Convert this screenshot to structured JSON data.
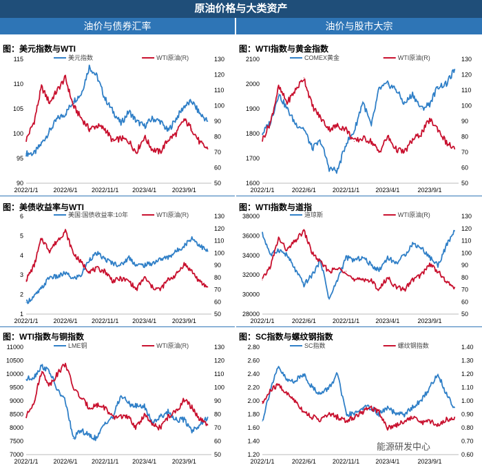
{
  "header": {
    "title": "原油价格与大类资产",
    "left_section": "油价与债券汇率",
    "right_section": "油价与股市大宗"
  },
  "watermark": "能源研发中心",
  "colors": {
    "blue": "#2f7fc7",
    "red": "#c8102e"
  },
  "chart_data": [
    {
      "id": "usd",
      "type": "line",
      "title": "图：美元指数与WTI",
      "x_ticks": [
        "2022/1/1",
        "2022/6/1",
        "2022/11/1",
        "2023/4/1",
        "2023/9/1"
      ],
      "left_axis": {
        "min": 90,
        "max": 115,
        "ticks": [
          "90",
          "95",
          "100",
          "105",
          "110",
          "115"
        ]
      },
      "right_axis": {
        "min": 50,
        "max": 130,
        "ticks": [
          "50",
          "60",
          "70",
          "80",
          "90",
          "100",
          "110",
          "120",
          "130"
        ]
      },
      "series": [
        {
          "name": "美元指数",
          "axis": "left",
          "color": "#2f7fc7",
          "x": [
            "2022-01-01",
            "2022-02-01",
            "2022-03-01",
            "2022-04-01",
            "2022-05-01",
            "2022-06-01",
            "2022-07-01",
            "2022-08-01",
            "2022-09-01",
            "2022-10-01",
            "2022-11-01",
            "2022-12-01",
            "2023-01-01",
            "2023-02-01",
            "2023-03-01",
            "2023-04-01",
            "2023-05-01",
            "2023-06-01",
            "2023-07-01",
            "2023-08-01",
            "2023-09-01",
            "2023-10-01",
            "2023-11-01",
            "2023-12-01"
          ],
          "values": [
            96,
            96,
            98,
            100.5,
            103,
            104,
            106.5,
            108,
            113.5,
            111.5,
            107,
            104.5,
            102,
            104.5,
            102.5,
            101.5,
            103,
            102.5,
            100.5,
            103,
            105.5,
            106.5,
            104,
            102.5
          ]
        },
        {
          "name": "WTI原油(R)",
          "axis": "right",
          "color": "#c8102e",
          "x": [
            "2022-01-01",
            "2022-02-01",
            "2022-03-01",
            "2022-04-01",
            "2022-05-01",
            "2022-06-01",
            "2022-07-01",
            "2022-08-01",
            "2022-09-01",
            "2022-10-01",
            "2022-11-01",
            "2022-12-01",
            "2023-01-01",
            "2023-02-01",
            "2023-03-01",
            "2023-04-01",
            "2023-05-01",
            "2023-06-01",
            "2023-07-01",
            "2023-08-01",
            "2023-09-01",
            "2023-10-01",
            "2023-11-01",
            "2023-12-01"
          ],
          "values": [
            78,
            90,
            112,
            102,
            110,
            118,
            100,
            92,
            85,
            87,
            85,
            77,
            79,
            77,
            70,
            80,
            72,
            70,
            78,
            82,
            91,
            85,
            76,
            72
          ]
        }
      ]
    },
    {
      "id": "gold",
      "type": "line",
      "title": "图：WTI指数与黄金指数",
      "x_ticks": [
        "2022/1/1",
        "2022/6/1",
        "2022/11/1",
        "2023/4/1",
        "2023/9/1"
      ],
      "left_axis": {
        "min": 1600,
        "max": 2100,
        "ticks": [
          "1600",
          "1700",
          "1800",
          "1900",
          "2000",
          "2100"
        ]
      },
      "right_axis": {
        "min": 50,
        "max": 130,
        "ticks": [
          "50",
          "60",
          "70",
          "80",
          "90",
          "100",
          "110",
          "120",
          "130"
        ]
      },
      "series": [
        {
          "name": "COMEX黄金",
          "axis": "left",
          "color": "#2f7fc7",
          "x": [
            "2022-01-01",
            "2022-02-01",
            "2022-03-01",
            "2022-04-01",
            "2022-05-01",
            "2022-06-01",
            "2022-07-01",
            "2022-08-01",
            "2022-09-01",
            "2022-10-01",
            "2022-11-01",
            "2022-12-01",
            "2023-01-01",
            "2023-02-01",
            "2023-03-01",
            "2023-04-01",
            "2023-05-01",
            "2023-06-01",
            "2023-07-01",
            "2023-08-01",
            "2023-09-01",
            "2023-10-01",
            "2023-11-01",
            "2023-12-01"
          ],
          "values": [
            1800,
            1850,
            1960,
            1900,
            1840,
            1820,
            1740,
            1770,
            1660,
            1650,
            1760,
            1810,
            1930,
            1830,
            1980,
            2000,
            1980,
            1920,
            1960,
            1900,
            1920,
            1990,
            2000,
            2060
          ]
        },
        {
          "name": "WTI原油(R)",
          "axis": "right",
          "color": "#c8102e",
          "x": [
            "2022-01-01",
            "2022-02-01",
            "2022-03-01",
            "2022-04-01",
            "2022-05-01",
            "2022-06-01",
            "2022-07-01",
            "2022-08-01",
            "2022-09-01",
            "2022-10-01",
            "2022-11-01",
            "2022-12-01",
            "2023-01-01",
            "2023-02-01",
            "2023-03-01",
            "2023-04-01",
            "2023-05-01",
            "2023-06-01",
            "2023-07-01",
            "2023-08-01",
            "2023-09-01",
            "2023-10-01",
            "2023-11-01",
            "2023-12-01"
          ],
          "values": [
            78,
            90,
            112,
            102,
            110,
            118,
            100,
            92,
            85,
            87,
            85,
            77,
            79,
            77,
            70,
            80,
            72,
            70,
            78,
            82,
            91,
            85,
            76,
            72
          ]
        }
      ]
    },
    {
      "id": "yield",
      "type": "line",
      "title": "图：美债收益率与WTI",
      "x_ticks": [
        "2022/1/1",
        "2022/6/1",
        "2022/11/1",
        "2023/4/1",
        "2023/9/1"
      ],
      "left_axis": {
        "min": 1,
        "max": 6,
        "ticks": [
          "1",
          "2",
          "3",
          "4",
          "5",
          "6"
        ]
      },
      "right_axis": {
        "min": 50,
        "max": 130,
        "ticks": [
          "50",
          "60",
          "70",
          "80",
          "90",
          "100",
          "110",
          "120",
          "130"
        ]
      },
      "series": [
        {
          "name": "美国:国债收益率:10年",
          "axis": "left",
          "color": "#2f7fc7",
          "x": [
            "2022-01-01",
            "2022-02-01",
            "2022-03-01",
            "2022-04-01",
            "2022-05-01",
            "2022-06-01",
            "2022-07-01",
            "2022-08-01",
            "2022-09-01",
            "2022-10-01",
            "2022-11-01",
            "2022-12-01",
            "2023-01-01",
            "2023-02-01",
            "2023-03-01",
            "2023-04-01",
            "2023-05-01",
            "2023-06-01",
            "2023-07-01",
            "2023-08-01",
            "2023-09-01",
            "2023-10-01",
            "2023-11-01",
            "2023-12-01"
          ],
          "values": [
            1.6,
            1.9,
            2.3,
            2.9,
            2.9,
            3.1,
            2.8,
            3.0,
            3.8,
            4.1,
            3.8,
            3.6,
            3.5,
            3.9,
            3.5,
            3.5,
            3.6,
            3.8,
            3.9,
            4.2,
            4.5,
            4.9,
            4.5,
            4.2
          ]
        },
        {
          "name": "WTI原油(R)",
          "axis": "right",
          "color": "#c8102e",
          "x": [
            "2022-01-01",
            "2022-02-01",
            "2022-03-01",
            "2022-04-01",
            "2022-05-01",
            "2022-06-01",
            "2022-07-01",
            "2022-08-01",
            "2022-09-01",
            "2022-10-01",
            "2022-11-01",
            "2022-12-01",
            "2023-01-01",
            "2023-02-01",
            "2023-03-01",
            "2023-04-01",
            "2023-05-01",
            "2023-06-01",
            "2023-07-01",
            "2023-08-01",
            "2023-09-01",
            "2023-10-01",
            "2023-11-01",
            "2023-12-01"
          ],
          "values": [
            78,
            90,
            112,
            102,
            110,
            118,
            100,
            92,
            85,
            87,
            85,
            77,
            79,
            77,
            70,
            80,
            72,
            70,
            78,
            82,
            91,
            85,
            76,
            72
          ]
        }
      ]
    },
    {
      "id": "dow",
      "type": "line",
      "title": "图：WTI指数与道指",
      "x_ticks": [
        "2022/1/1",
        "2022/6/1",
        "2022/11/1",
        "2023/4/1",
        "2023/9/1"
      ],
      "left_axis": {
        "min": 28000,
        "max": 38000,
        "ticks": [
          "28000",
          "30000",
          "32000",
          "34000",
          "36000",
          "38000"
        ]
      },
      "right_axis": {
        "min": 50,
        "max": 130,
        "ticks": [
          "50",
          "60",
          "70",
          "80",
          "90",
          "100",
          "110",
          "120",
          "130"
        ]
      },
      "series": [
        {
          "name": "道琼斯",
          "axis": "left",
          "color": "#2f7fc7",
          "x": [
            "2022-01-01",
            "2022-02-01",
            "2022-03-01",
            "2022-04-01",
            "2022-05-01",
            "2022-06-01",
            "2022-07-01",
            "2022-08-01",
            "2022-09-01",
            "2022-10-01",
            "2022-11-01",
            "2022-12-01",
            "2023-01-01",
            "2023-02-01",
            "2023-03-01",
            "2023-04-01",
            "2023-05-01",
            "2023-06-01",
            "2023-07-01",
            "2023-08-01",
            "2023-09-01",
            "2023-10-01",
            "2023-11-01",
            "2023-12-01"
          ],
          "values": [
            36200,
            34000,
            34600,
            34000,
            32500,
            31000,
            32000,
            33500,
            29500,
            31500,
            33800,
            33500,
            33800,
            33000,
            32500,
            33800,
            33200,
            34000,
            35200,
            34800,
            33800,
            33000,
            35000,
            36500
          ]
        },
        {
          "name": "WTI原油(R)",
          "axis": "right",
          "color": "#c8102e",
          "x": [
            "2022-01-01",
            "2022-02-01",
            "2022-03-01",
            "2022-04-01",
            "2022-05-01",
            "2022-06-01",
            "2022-07-01",
            "2022-08-01",
            "2022-09-01",
            "2022-10-01",
            "2022-11-01",
            "2022-12-01",
            "2023-01-01",
            "2023-02-01",
            "2023-03-01",
            "2023-04-01",
            "2023-05-01",
            "2023-06-01",
            "2023-07-01",
            "2023-08-01",
            "2023-09-01",
            "2023-10-01",
            "2023-11-01",
            "2023-12-01"
          ],
          "values": [
            78,
            90,
            112,
            102,
            110,
            118,
            100,
            92,
            85,
            87,
            85,
            77,
            79,
            77,
            70,
            80,
            72,
            70,
            78,
            82,
            91,
            85,
            76,
            72
          ]
        }
      ]
    },
    {
      "id": "copper",
      "type": "line",
      "title": "图：WTI指数与铜指数",
      "x_ticks": [
        "2022/1/1",
        "2022/6/1",
        "2022/11/1",
        "2023/4/1",
        "2023/9/1"
      ],
      "left_axis": {
        "min": 7000,
        "max": 11000,
        "ticks": [
          "7000",
          "7500",
          "8000",
          "8500",
          "9000",
          "9500",
          "10000",
          "10500",
          "11000"
        ]
      },
      "right_axis": {
        "min": 50,
        "max": 130,
        "ticks": [
          "50",
          "60",
          "70",
          "80",
          "90",
          "100",
          "110",
          "120",
          "130"
        ]
      },
      "series": [
        {
          "name": "LME铜",
          "axis": "left",
          "color": "#2f7fc7",
          "x": [
            "2022-01-01",
            "2022-02-01",
            "2022-03-01",
            "2022-04-01",
            "2022-05-01",
            "2022-06-01",
            "2022-07-01",
            "2022-08-01",
            "2022-09-01",
            "2022-10-01",
            "2022-11-01",
            "2022-12-01",
            "2023-01-01",
            "2023-02-01",
            "2023-03-01",
            "2023-04-01",
            "2023-05-01",
            "2023-06-01",
            "2023-07-01",
            "2023-08-01",
            "2023-09-01",
            "2023-10-01",
            "2023-11-01",
            "2023-12-01"
          ],
          "values": [
            9800,
            9900,
            10300,
            10100,
            9400,
            9000,
            7600,
            7900,
            7700,
            7600,
            8200,
            8400,
            9200,
            8900,
            8800,
            8800,
            8200,
            8400,
            8600,
            8300,
            8300,
            7900,
            8100,
            8400
          ]
        },
        {
          "name": "WTI原油(R)",
          "axis": "right",
          "color": "#c8102e",
          "x": [
            "2022-01-01",
            "2022-02-01",
            "2022-03-01",
            "2022-04-01",
            "2022-05-01",
            "2022-06-01",
            "2022-07-01",
            "2022-08-01",
            "2022-09-01",
            "2022-10-01",
            "2022-11-01",
            "2022-12-01",
            "2023-01-01",
            "2023-02-01",
            "2023-03-01",
            "2023-04-01",
            "2023-05-01",
            "2023-06-01",
            "2023-07-01",
            "2023-08-01",
            "2023-09-01",
            "2023-10-01",
            "2023-11-01",
            "2023-12-01"
          ],
          "values": [
            78,
            90,
            112,
            102,
            110,
            118,
            100,
            92,
            85,
            87,
            85,
            77,
            79,
            77,
            70,
            80,
            72,
            70,
            78,
            82,
            91,
            85,
            76,
            72
          ]
        }
      ]
    },
    {
      "id": "sc",
      "type": "line",
      "title": "图：SC指数与螺纹钢指数",
      "x_ticks": [
        "2022/1/1",
        "2022/6/1",
        "2022/11/1",
        "2023/4/1",
        "2023/9/1"
      ],
      "left_axis": {
        "min": 1.2,
        "max": 2.8,
        "ticks": [
          "1.20",
          "1.40",
          "1.60",
          "1.80",
          "2.00",
          "2.20",
          "2.40",
          "2.60",
          "2.80"
        ]
      },
      "right_axis": {
        "min": 0.6,
        "max": 1.4,
        "ticks": [
          "0.60",
          "0.70",
          "0.80",
          "0.90",
          "1.00",
          "1.10",
          "1.20",
          "1.30",
          "1.40"
        ]
      },
      "series": [
        {
          "name": "SC指数",
          "axis": "left",
          "color": "#2f7fc7",
          "x": [
            "2022-01-01",
            "2022-02-01",
            "2022-03-01",
            "2022-04-01",
            "2022-05-01",
            "2022-06-01",
            "2022-07-01",
            "2022-08-01",
            "2022-09-01",
            "2022-10-01",
            "2022-11-01",
            "2022-12-01",
            "2023-01-01",
            "2023-02-01",
            "2023-03-01",
            "2023-04-01",
            "2023-05-01",
            "2023-06-01",
            "2023-07-01",
            "2023-08-01",
            "2023-09-01",
            "2023-10-01",
            "2023-11-01",
            "2023-12-01"
          ],
          "values": [
            1.7,
            2.2,
            2.5,
            2.3,
            2.3,
            2.4,
            2.2,
            2.1,
            2.2,
            2.4,
            1.8,
            1.8,
            1.9,
            1.9,
            1.8,
            1.9,
            1.8,
            1.8,
            1.9,
            2.0,
            2.2,
            2.4,
            2.1,
            1.9
          ]
        },
        {
          "name": "螺纹钢指数",
          "axis": "right",
          "color": "#c8102e",
          "x": [
            "2022-01-01",
            "2022-02-01",
            "2022-03-01",
            "2022-04-01",
            "2022-05-01",
            "2022-06-01",
            "2022-07-01",
            "2022-08-01",
            "2022-09-01",
            "2022-10-01",
            "2022-11-01",
            "2022-12-01",
            "2023-01-01",
            "2023-02-01",
            "2023-03-01",
            "2023-04-01",
            "2023-05-01",
            "2023-06-01",
            "2023-07-01",
            "2023-08-01",
            "2023-09-01",
            "2023-10-01",
            "2023-11-01",
            "2023-12-01"
          ],
          "values": [
            0.98,
            1.08,
            1.12,
            1.05,
            1.0,
            0.92,
            0.88,
            0.86,
            0.9,
            0.88,
            0.85,
            0.88,
            0.92,
            0.95,
            0.92,
            0.8,
            0.82,
            0.85,
            0.88,
            0.84,
            0.85,
            0.82,
            0.86,
            0.88
          ]
        }
      ]
    }
  ]
}
